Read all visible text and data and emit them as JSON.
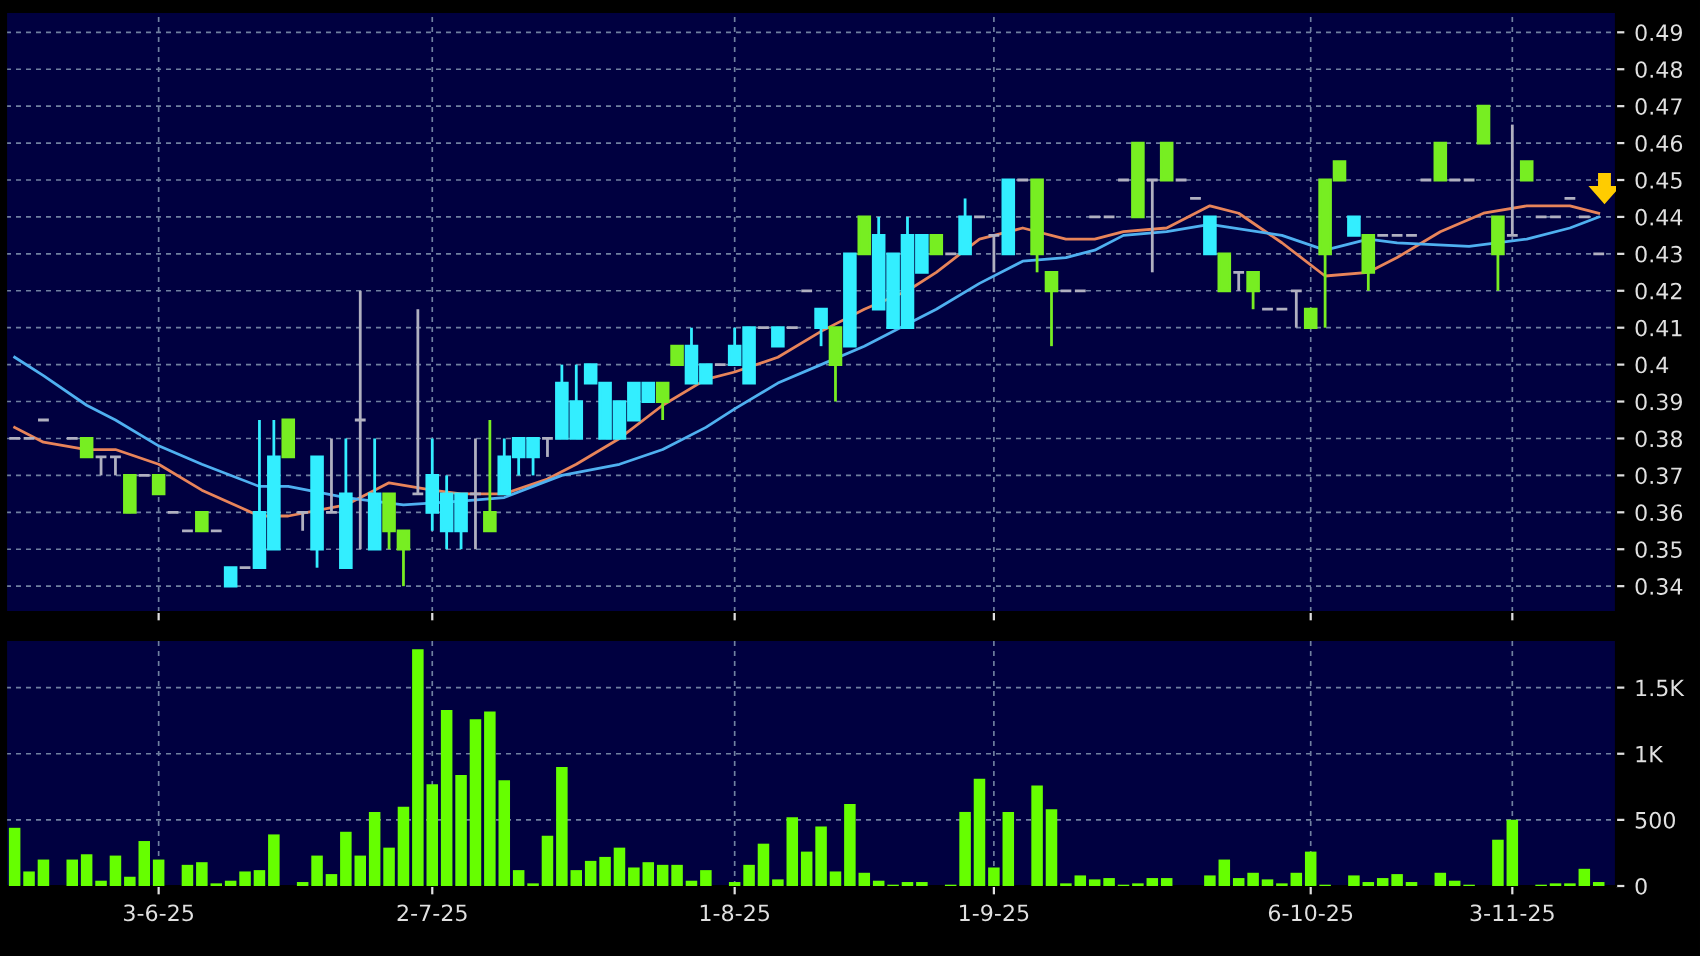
{
  "chart_data": [
    {
      "type": "candlestick",
      "categories": [
        null,
        null,
        null,
        null,
        null,
        null,
        null,
        null,
        null,
        null,
        null,
        null,
        null,
        null,
        null,
        null,
        null,
        null,
        null,
        null,
        null,
        null,
        null,
        null,
        null,
        null,
        null,
        null,
        null,
        null,
        null,
        null,
        null,
        null,
        null,
        null,
        null,
        null,
        null,
        null,
        null,
        null,
        null,
        null,
        null,
        null,
        null,
        null,
        null,
        null,
        null,
        null,
        null,
        null,
        null,
        null,
        null,
        null,
        null,
        null,
        null,
        null,
        null,
        null,
        null,
        null,
        null,
        null,
        null,
        null,
        null,
        null,
        null,
        null,
        null,
        null,
        null,
        null,
        null,
        null,
        null,
        null,
        null,
        null,
        null,
        null,
        null,
        null,
        null,
        null,
        null,
        null,
        null,
        null,
        null,
        null,
        null,
        null,
        null,
        null,
        null,
        null,
        null,
        null,
        null,
        null,
        null,
        null,
        null,
        null,
        null
      ],
      "ohlc": [
        [
          0.38,
          0.38,
          0.38,
          0.38
        ],
        [
          0.38,
          0.38,
          0.38,
          0.38
        ],
        [
          0.385,
          0.385,
          0.385,
          0.385
        ],
        null,
        [
          0.38,
          0.38,
          0.38,
          0.38
        ],
        [
          0.38,
          0.38,
          0.375,
          0.375
        ],
        [
          0.375,
          0.375,
          0.37,
          0.375
        ],
        [
          0.375,
          0.375,
          0.37,
          0.375
        ],
        [
          0.37,
          0.37,
          0.36,
          0.36
        ],
        [
          0.37,
          0.37,
          0.37,
          0.37
        ],
        [
          0.37,
          0.37,
          0.365,
          0.365
        ],
        [
          0.36,
          0.36,
          0.36,
          0.36
        ],
        [
          0.355,
          0.355,
          0.355,
          0.355
        ],
        [
          0.36,
          0.36,
          0.355,
          0.355
        ],
        [
          0.355,
          0.355,
          0.355,
          0.355
        ],
        [
          0.34,
          0.345,
          0.34,
          0.345
        ],
        [
          0.345,
          0.345,
          0.345,
          0.345
        ],
        [
          0.345,
          0.385,
          0.345,
          0.36
        ],
        [
          0.35,
          0.385,
          0.35,
          0.375
        ],
        [
          0.385,
          0.385,
          0.375,
          0.375
        ],
        [
          0.36,
          0.36,
          0.355,
          0.36
        ],
        [
          0.35,
          0.375,
          0.345,
          0.375
        ],
        [
          0.36,
          0.38,
          0.36,
          0.36
        ],
        [
          0.345,
          0.38,
          0.345,
          0.365
        ],
        [
          0.385,
          0.42,
          0.35,
          0.385
        ],
        [
          0.35,
          0.38,
          0.35,
          0.365
        ],
        [
          0.365,
          0.365,
          0.35,
          0.355
        ],
        [
          0.355,
          0.355,
          0.34,
          0.35
        ],
        [
          0.365,
          0.415,
          0.365,
          0.365
        ],
        [
          0.36,
          0.38,
          0.355,
          0.37
        ],
        [
          0.355,
          0.37,
          0.35,
          0.365
        ],
        [
          0.355,
          0.365,
          0.35,
          0.365
        ],
        [
          0.365,
          0.38,
          0.35,
          0.365
        ],
        [
          0.36,
          0.385,
          0.355,
          0.355
        ],
        [
          0.365,
          0.38,
          0.365,
          0.375
        ],
        [
          0.375,
          0.38,
          0.37,
          0.38
        ],
        [
          0.375,
          0.38,
          0.37,
          0.38
        ],
        [
          0.38,
          0.38,
          0.375,
          0.38
        ],
        [
          0.38,
          0.4,
          0.38,
          0.395
        ],
        [
          0.38,
          0.4,
          0.38,
          0.39
        ],
        [
          0.395,
          0.4,
          0.395,
          0.4
        ],
        [
          0.38,
          0.395,
          0.38,
          0.395
        ],
        [
          0.38,
          0.39,
          0.38,
          0.39
        ],
        [
          0.385,
          0.395,
          0.385,
          0.395
        ],
        [
          0.39,
          0.395,
          0.39,
          0.395
        ],
        [
          0.395,
          0.395,
          0.385,
          0.39
        ],
        [
          0.405,
          0.405,
          0.4,
          0.4
        ],
        [
          0.395,
          0.41,
          0.395,
          0.405
        ],
        [
          0.395,
          0.4,
          0.395,
          0.4
        ],
        [
          0.4,
          0.4,
          0.4,
          0.4
        ],
        [
          0.4,
          0.41,
          0.4,
          0.405
        ],
        [
          0.395,
          0.41,
          0.395,
          0.41
        ],
        [
          0.41,
          0.41,
          0.41,
          0.41
        ],
        [
          0.405,
          0.41,
          0.405,
          0.41
        ],
        [
          0.41,
          0.41,
          0.41,
          0.41
        ],
        [
          0.42,
          0.42,
          0.42,
          0.42
        ],
        [
          0.41,
          0.415,
          0.405,
          0.415
        ],
        [
          0.41,
          0.41,
          0.39,
          0.4
        ],
        [
          0.405,
          0.43,
          0.405,
          0.43
        ],
        [
          0.44,
          0.44,
          0.43,
          0.43
        ],
        [
          0.415,
          0.44,
          0.415,
          0.435
        ],
        [
          0.41,
          0.43,
          0.41,
          0.43
        ],
        [
          0.41,
          0.44,
          0.41,
          0.435
        ],
        [
          0.425,
          0.435,
          0.425,
          0.435
        ],
        [
          0.435,
          0.435,
          0.43,
          0.43
        ],
        [
          0.43,
          0.43,
          0.43,
          0.43
        ],
        [
          0.43,
          0.445,
          0.43,
          0.44
        ],
        [
          0.44,
          0.44,
          0.44,
          0.44
        ],
        [
          0.435,
          0.435,
          0.425,
          0.435
        ],
        [
          0.43,
          0.45,
          0.43,
          0.45
        ],
        [
          0.45,
          0.45,
          0.45,
          0.45
        ],
        [
          0.45,
          0.45,
          0.425,
          0.43
        ],
        [
          0.425,
          0.425,
          0.405,
          0.42
        ],
        [
          0.42,
          0.42,
          0.42,
          0.42
        ],
        [
          0.42,
          0.42,
          0.42,
          0.42
        ],
        [
          0.44,
          0.44,
          0.44,
          0.44
        ],
        [
          0.44,
          0.44,
          0.44,
          0.44
        ],
        [
          0.45,
          0.45,
          0.45,
          0.45
        ],
        [
          0.46,
          0.46,
          0.44,
          0.44
        ],
        [
          0.45,
          0.45,
          0.425,
          0.45
        ],
        [
          0.46,
          0.46,
          0.45,
          0.45
        ],
        [
          0.45,
          0.45,
          0.45,
          0.45
        ],
        [
          0.445,
          0.445,
          0.445,
          0.445
        ],
        [
          0.43,
          0.44,
          0.43,
          0.44
        ],
        [
          0.43,
          0.43,
          0.42,
          0.42
        ],
        [
          0.425,
          0.425,
          0.42,
          0.425
        ],
        [
          0.425,
          0.425,
          0.415,
          0.42
        ],
        [
          0.415,
          0.415,
          0.415,
          0.415
        ],
        [
          0.415,
          0.415,
          0.415,
          0.415
        ],
        [
          0.42,
          0.42,
          0.41,
          0.42
        ],
        [
          0.415,
          0.415,
          0.41,
          0.41
        ],
        [
          0.45,
          0.45,
          0.41,
          0.43
        ],
        [
          0.455,
          0.455,
          0.45,
          0.45
        ],
        [
          0.435,
          0.44,
          0.435,
          0.44
        ],
        [
          0.435,
          0.435,
          0.42,
          0.425
        ],
        [
          0.435,
          0.435,
          0.435,
          0.435
        ],
        [
          0.435,
          0.435,
          0.435,
          0.435
        ],
        [
          0.435,
          0.435,
          0.435,
          0.435
        ],
        [
          0.45,
          0.45,
          0.45,
          0.45
        ],
        [
          0.46,
          0.46,
          0.45,
          0.45
        ],
        [
          0.45,
          0.45,
          0.45,
          0.45
        ],
        [
          0.45,
          0.45,
          0.45,
          0.45
        ],
        [
          0.47,
          0.47,
          0.46,
          0.46
        ],
        [
          0.44,
          0.44,
          0.42,
          0.43
        ],
        [
          0.435,
          0.465,
          0.435,
          0.435
        ],
        [
          0.455,
          0.455,
          0.45,
          0.45
        ],
        [
          0.44,
          0.44,
          0.44,
          0.44
        ],
        [
          0.44,
          0.44,
          0.44,
          0.44
        ],
        [
          0.445,
          0.445,
          0.445,
          0.445
        ],
        [
          0.44,
          0.44,
          0.44,
          0.44
        ],
        [
          0.43,
          0.43,
          0.43,
          0.43
        ]
      ],
      "colors": [
        "#b0b0c0",
        "#b0b0c0",
        "#b0b0c0",
        null,
        "#b0b0c0",
        "#77ee22",
        "#b0b0c0",
        "#b0b0c0",
        "#77ee22",
        "#b0b0c0",
        "#77ee22",
        "#b0b0c0",
        "#b0b0c0",
        "#77ee22",
        "#b0b0c0",
        "#33eeff",
        "#b0b0c0",
        "#33eeff",
        "#33eeff",
        "#77ee22",
        "#b0b0c0",
        "#33eeff",
        "#b0b0c0",
        "#33eeff",
        "#b0b0c0",
        "#33eeff",
        "#77ee22",
        "#77ee22",
        "#b0b0c0",
        "#33eeff",
        "#33eeff",
        "#33eeff",
        "#b0b0c0",
        "#77ee22",
        "#33eeff",
        "#33eeff",
        "#33eeff",
        "#b0b0c0",
        "#33eeff",
        "#33eeff",
        "#33eeff",
        "#33eeff",
        "#33eeff",
        "#33eeff",
        "#33eeff",
        "#77ee22",
        "#77ee22",
        "#33eeff",
        "#33eeff",
        "#b0b0c0",
        "#33eeff",
        "#33eeff",
        "#b0b0c0",
        "#33eeff",
        "#b0b0c0",
        "#b0b0c0",
        "#33eeff",
        "#77ee22",
        "#33eeff",
        "#77ee22",
        "#33eeff",
        "#33eeff",
        "#33eeff",
        "#33eeff",
        "#77ee22",
        "#b0b0c0",
        "#33eeff",
        "#b0b0c0",
        "#b0b0c0",
        "#33eeff",
        "#b0b0c0",
        "#77ee22",
        "#77ee22",
        "#b0b0c0",
        "#b0b0c0",
        "#b0b0c0",
        "#b0b0c0",
        "#b0b0c0",
        "#77ee22",
        "#b0b0c0",
        "#77ee22",
        "#b0b0c0",
        "#b0b0c0",
        "#33eeff",
        "#77ee22",
        "#b0b0c0",
        "#77ee22",
        "#b0b0c0",
        "#b0b0c0",
        "#b0b0c0",
        "#77ee22",
        "#77ee22",
        "#77ee22",
        "#33eeff",
        "#77ee22",
        "#b0b0c0",
        "#b0b0c0",
        "#b0b0c0",
        "#b0b0c0",
        "#77ee22",
        "#b0b0c0",
        "#b0b0c0",
        "#77ee22",
        "#77ee22",
        "#b0b0c0",
        "#77ee22",
        "#b0b0c0",
        "#b0b0c0",
        "#b0b0c0",
        "#b0b0c0",
        "#b0b0c0"
      ],
      "series": [
        {
          "type": "line",
          "color": "#e8845a",
          "values": [
            0.383,
            null,
            0.379,
            null,
            null,
            0.377,
            null,
            0.377,
            null,
            null,
            0.373,
            null,
            null,
            0.366,
            null,
            null,
            null,
            0.359,
            null,
            0.359,
            null,
            null,
            null,
            0.362,
            null,
            null,
            0.368,
            null,
            null,
            0.366,
            null,
            0.365,
            null,
            null,
            0.365,
            null,
            null,
            0.369,
            null,
            0.373,
            null,
            null,
            0.38,
            null,
            null,
            0.389,
            null,
            null,
            0.396,
            null,
            0.398,
            null,
            null,
            0.402,
            null,
            null,
            0.409,
            null,
            null,
            0.415,
            null,
            null,
            0.42,
            null,
            0.425,
            null,
            null,
            0.434,
            null,
            null,
            0.437,
            null,
            null,
            0.434,
            null,
            0.434,
            null,
            0.436,
            null,
            null,
            0.437,
            null,
            null,
            0.443,
            null,
            0.441,
            null,
            null,
            0.433,
            null,
            null,
            0.424,
            null,
            null,
            0.425,
            null,
            0.429,
            null,
            null,
            0.436,
            null,
            null,
            0.441,
            null,
            null,
            0.443,
            null,
            null,
            0.443,
            null,
            0.441
          ]
        },
        {
          "type": "line",
          "color": "#4fb0f0",
          "values": [
            0.402,
            null,
            0.397,
            null,
            null,
            0.389,
            null,
            0.385,
            null,
            null,
            0.378,
            null,
            null,
            0.373,
            null,
            null,
            null,
            0.367,
            null,
            0.367,
            null,
            null,
            null,
            0.364,
            null,
            null,
            null,
            0.362,
            null,
            null,
            null,
            0.363,
            null,
            null,
            0.364,
            null,
            null,
            null,
            0.37,
            null,
            null,
            null,
            0.373,
            null,
            null,
            0.377,
            null,
            null,
            0.383,
            null,
            0.388,
            null,
            null,
            0.395,
            null,
            null,
            0.4,
            null,
            null,
            0.405,
            null,
            null,
            0.411,
            null,
            0.415,
            null,
            null,
            0.422,
            null,
            null,
            0.428,
            null,
            null,
            0.429,
            null,
            0.431,
            null,
            0.435,
            null,
            null,
            0.436,
            null,
            null,
            0.438,
            null,
            null,
            null,
            null,
            0.435,
            null,
            null,
            0.431,
            null,
            null,
            0.434,
            null,
            0.433,
            null,
            null,
            null,
            null,
            0.432,
            null,
            null,
            null,
            0.434,
            null,
            null,
            0.437,
            null,
            0.44
          ]
        }
      ],
      "ylim": [
        0.333,
        0.4955
      ],
      "yticks": [
        0.34,
        0.35,
        0.36,
        0.37,
        0.38,
        0.39,
        0.4,
        0.41,
        0.42,
        0.43,
        0.44,
        0.45,
        0.46,
        0.47,
        0.48,
        0.49
      ],
      "grid": true,
      "tick_labels": "y"
    },
    {
      "type": "bar",
      "categories": [
        null,
        null,
        null,
        null,
        null,
        null,
        null,
        null,
        null,
        null,
        "3-6-25",
        null,
        null,
        null,
        null,
        null,
        null,
        null,
        null,
        null,
        null,
        null,
        null,
        null,
        null,
        null,
        null,
        null,
        null,
        "2-7-25",
        null,
        null,
        null,
        null,
        null,
        null,
        null,
        null,
        null,
        null,
        null,
        null,
        null,
        null,
        null,
        null,
        null,
        null,
        null,
        null,
        "1-8-25",
        null,
        null,
        null,
        null,
        null,
        null,
        null,
        null,
        null,
        null,
        null,
        null,
        null,
        null,
        null,
        null,
        null,
        "1-9-25",
        null,
        null,
        null,
        null,
        null,
        null,
        null,
        null,
        null,
        null,
        null,
        null,
        null,
        null,
        null,
        null,
        null,
        null,
        null,
        null,
        null,
        "6-10-25",
        null,
        null,
        null,
        null,
        null,
        null,
        null,
        null,
        null,
        null,
        null,
        null,
        null,
        "3-11-25",
        null,
        null,
        null,
        null,
        null,
        null
      ],
      "values": [
        440,
        110,
        200,
        0,
        200,
        240,
        40,
        230,
        70,
        340,
        200,
        0,
        160,
        180,
        20,
        40,
        110,
        120,
        390,
        0,
        30,
        230,
        90,
        410,
        230,
        560,
        290,
        600,
        1790,
        770,
        1330,
        840,
        1260,
        1320,
        800,
        120,
        20,
        380,
        900,
        120,
        190,
        220,
        290,
        140,
        180,
        160,
        160,
        40,
        120,
        0,
        30,
        160,
        320,
        50,
        520,
        260,
        450,
        110,
        620,
        100,
        40,
        10,
        30,
        30,
        0,
        10,
        560,
        810,
        140,
        560,
        0,
        760,
        580,
        20,
        80,
        50,
        60,
        10,
        20,
        60,
        60,
        0,
        0,
        80,
        200,
        60,
        100,
        50,
        20,
        100,
        260,
        10,
        0,
        80,
        30,
        60,
        90,
        30,
        0,
        100,
        40,
        10,
        0,
        350,
        500,
        0,
        10,
        20,
        20,
        130,
        30
      ],
      "color": "#66ff00",
      "ylim": [
        0,
        1860
      ],
      "yticks": [
        0,
        500,
        {
          "value": 1000,
          "label": "1K"
        },
        {
          "value": 1500,
          "label": "1.5K"
        }
      ],
      "grid": true
    }
  ]
}
